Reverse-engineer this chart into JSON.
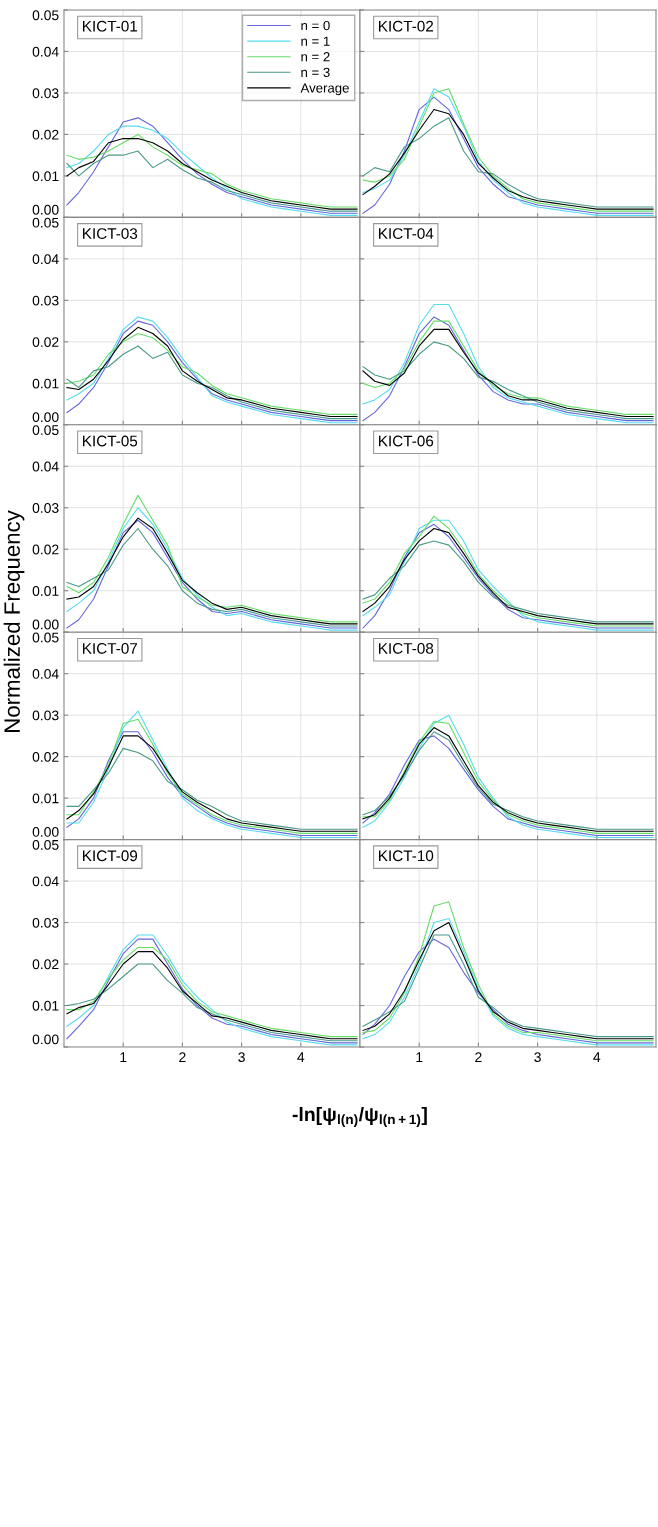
{
  "chart_data": [
    {
      "type": "line",
      "title": "KICT-01",
      "x": [
        0.05,
        0.25,
        0.5,
        0.75,
        1.0,
        1.25,
        1.5,
        1.75,
        2.0,
        2.25,
        2.5,
        2.75,
        3.0,
        3.25,
        3.5,
        3.75,
        4.0,
        4.25,
        4.5,
        4.75,
        4.95
      ],
      "xlim": [
        0,
        5
      ],
      "ylim": [
        0,
        0.05
      ],
      "xticks": [
        {
          "value": 1,
          "label": null
        },
        {
          "value": 2,
          "label": null
        },
        {
          "value": 3,
          "label": null
        },
        {
          "value": 4,
          "label": null
        }
      ],
      "yticks": [
        {
          "value": 0,
          "label": "0.00"
        },
        {
          "value": 0.01,
          "label": "0.01"
        },
        {
          "value": 0.02,
          "label": "0.02"
        },
        {
          "value": 0.03,
          "label": "0.03"
        },
        {
          "value": 0.04,
          "label": "0.04"
        },
        {
          "value": 0.05,
          "label": "0.05"
        }
      ],
      "grid": true,
      "tick_labels": "y",
      "legend": "top right",
      "series": [
        {
          "name": "n = 0",
          "color": "#6666dd",
          "values": [
            0.003,
            0.006,
            0.011,
            0.017,
            0.023,
            0.024,
            0.022,
            0.018,
            0.014,
            0.0105,
            0.008,
            0.006,
            0.005,
            0.004,
            0.003,
            0.0025,
            0.002,
            0.0015,
            0.001,
            0.001,
            0.001
          ]
        },
        {
          "name": "n = 1",
          "color": "#55ddee",
          "values": [
            0.012,
            0.013,
            0.016,
            0.02,
            0.022,
            0.022,
            0.021,
            0.019,
            0.0155,
            0.0125,
            0.0095,
            0.007,
            0.0045,
            0.0035,
            0.0025,
            0.002,
            0.0015,
            0.001,
            0.0005,
            0.0005,
            0.0005
          ]
        },
        {
          "name": "n = 2",
          "color": "#66dd66",
          "values": [
            0.015,
            0.014,
            0.0145,
            0.016,
            0.018,
            0.02,
            0.017,
            0.015,
            0.0125,
            0.0115,
            0.0105,
            0.008,
            0.0065,
            0.0055,
            0.0045,
            0.004,
            0.0035,
            0.003,
            0.0025,
            0.0025,
            0.0025
          ]
        },
        {
          "name": "n = 3",
          "color": "#4a9a8a",
          "values": [
            0.013,
            0.01,
            0.013,
            0.015,
            0.015,
            0.016,
            0.012,
            0.014,
            0.0115,
            0.0095,
            0.0085,
            0.0065,
            0.0055,
            0.0045,
            0.0035,
            0.003,
            0.0025,
            0.002,
            0.0015,
            0.0015,
            0.0015
          ]
        },
        {
          "name": "Average",
          "color": "#000000",
          "values": [
            0.01,
            0.012,
            0.0135,
            0.018,
            0.019,
            0.019,
            0.018,
            0.016,
            0.013,
            0.011,
            0.009,
            0.0075,
            0.006,
            0.005,
            0.004,
            0.0035,
            0.003,
            0.0025,
            0.002,
            0.002,
            0.002
          ]
        }
      ]
    },
    {
      "type": "line",
      "title": "KICT-02",
      "x": [
        0.05,
        0.25,
        0.5,
        0.75,
        1.0,
        1.25,
        1.5,
        1.75,
        2.0,
        2.25,
        2.5,
        2.75,
        3.0,
        3.25,
        3.5,
        3.75,
        4.0,
        4.25,
        4.5,
        4.75,
        4.95
      ],
      "xlim": [
        0,
        5
      ],
      "ylim": [
        0,
        0.05
      ],
      "xticks": [
        {
          "value": 1,
          "label": null
        },
        {
          "value": 2,
          "label": null
        },
        {
          "value": 3,
          "label": null
        },
        {
          "value": 4,
          "label": null
        }
      ],
      "yticks": [
        {
          "value": 0,
          "label": null
        },
        {
          "value": 0.01,
          "label": null
        },
        {
          "value": 0.02,
          "label": null
        },
        {
          "value": 0.03,
          "label": null
        },
        {
          "value": 0.04,
          "label": null
        },
        {
          "value": 0.05,
          "label": null
        }
      ],
      "grid": true,
      "tick_labels": false,
      "series": [
        {
          "color": "#6666dd",
          "values": [
            0.001,
            0.003,
            0.008,
            0.016,
            0.026,
            0.029,
            0.026,
            0.019,
            0.012,
            0.008,
            0.005,
            0.004,
            0.003,
            0.0025,
            0.002,
            0.0015,
            0.001,
            0.001,
            0.001,
            0.001,
            0.001
          ]
        },
        {
          "color": "#55ddee",
          "values": [
            0.006,
            0.007,
            0.009,
            0.015,
            0.023,
            0.031,
            0.029,
            0.022,
            0.0135,
            0.009,
            0.006,
            0.0035,
            0.0025,
            0.002,
            0.0015,
            0.001,
            0.0005,
            0.0005,
            0.0005,
            0.0005,
            0.0005
          ]
        },
        {
          "color": "#66dd66",
          "values": [
            0.009,
            0.0085,
            0.01,
            0.014,
            0.022,
            0.03,
            0.031,
            0.0225,
            0.0145,
            0.01,
            0.007,
            0.0045,
            0.0035,
            0.003,
            0.0025,
            0.002,
            0.0015,
            0.0015,
            0.0015,
            0.0015,
            0.0015
          ]
        },
        {
          "color": "#4a9a8a",
          "values": [
            0.01,
            0.012,
            0.011,
            0.017,
            0.019,
            0.022,
            0.024,
            0.016,
            0.011,
            0.0105,
            0.008,
            0.006,
            0.0045,
            0.004,
            0.0035,
            0.003,
            0.0025,
            0.0025,
            0.0025,
            0.0025,
            0.0025
          ]
        },
        {
          "color": "#000000",
          "values": [
            0.0055,
            0.0075,
            0.0105,
            0.0155,
            0.021,
            0.026,
            0.025,
            0.02,
            0.013,
            0.0095,
            0.0065,
            0.005,
            0.004,
            0.0035,
            0.003,
            0.0025,
            0.002,
            0.002,
            0.002,
            0.002,
            0.002
          ]
        }
      ]
    },
    {
      "type": "line",
      "title": "KICT-03",
      "x": [
        0.05,
        0.25,
        0.5,
        0.75,
        1.0,
        1.25,
        1.5,
        1.75,
        2.0,
        2.25,
        2.5,
        2.75,
        3.0,
        3.25,
        3.5,
        3.75,
        4.0,
        4.25,
        4.5,
        4.75,
        4.95
      ],
      "xlim": [
        0,
        5
      ],
      "ylim": [
        0,
        0.05
      ],
      "xticks": [
        {
          "value": 1,
          "label": null
        },
        {
          "value": 2,
          "label": null
        },
        {
          "value": 3,
          "label": null
        },
        {
          "value": 4,
          "label": null
        }
      ],
      "yticks": [
        {
          "value": 0,
          "label": "0.00"
        },
        {
          "value": 0.01,
          "label": "0.01"
        },
        {
          "value": 0.02,
          "label": "0.02"
        },
        {
          "value": 0.03,
          "label": "0.03"
        },
        {
          "value": 0.04,
          "label": "0.04"
        },
        {
          "value": 0.05,
          "label": "0.05"
        }
      ],
      "grid": true,
      "tick_labels": "y",
      "series": [
        {
          "color": "#6666dd",
          "values": [
            0.003,
            0.005,
            0.009,
            0.015,
            0.022,
            0.025,
            0.024,
            0.02,
            0.015,
            0.011,
            0.0075,
            0.006,
            0.005,
            0.004,
            0.003,
            0.0025,
            0.002,
            0.0015,
            0.001,
            0.001,
            0.001
          ]
        },
        {
          "color": "#55ddee",
          "values": [
            0.006,
            0.0075,
            0.01,
            0.016,
            0.023,
            0.026,
            0.025,
            0.021,
            0.016,
            0.0115,
            0.007,
            0.0055,
            0.0045,
            0.0035,
            0.0025,
            0.002,
            0.0015,
            0.001,
            0.0005,
            0.0005,
            0.0005
          ]
        },
        {
          "color": "#66dd66",
          "values": [
            0.01,
            0.0105,
            0.012,
            0.017,
            0.02,
            0.022,
            0.021,
            0.018,
            0.014,
            0.0125,
            0.0095,
            0.0075,
            0.0065,
            0.0055,
            0.0045,
            0.004,
            0.0035,
            0.003,
            0.0025,
            0.0025,
            0.0025
          ]
        },
        {
          "color": "#4a9a8a",
          "values": [
            0.011,
            0.009,
            0.013,
            0.014,
            0.017,
            0.019,
            0.016,
            0.0175,
            0.012,
            0.01,
            0.009,
            0.007,
            0.0055,
            0.0045,
            0.0035,
            0.003,
            0.0025,
            0.002,
            0.0015,
            0.0015,
            0.0015
          ]
        },
        {
          "color": "#000000",
          "values": [
            0.009,
            0.0085,
            0.011,
            0.0155,
            0.0205,
            0.0235,
            0.022,
            0.019,
            0.013,
            0.0105,
            0.0085,
            0.0065,
            0.006,
            0.005,
            0.004,
            0.0035,
            0.003,
            0.0025,
            0.002,
            0.002,
            0.002
          ]
        }
      ]
    },
    {
      "type": "line",
      "title": "KICT-04",
      "x": [
        0.05,
        0.25,
        0.5,
        0.75,
        1.0,
        1.25,
        1.5,
        1.75,
        2.0,
        2.25,
        2.5,
        2.75,
        3.0,
        3.25,
        3.5,
        3.75,
        4.0,
        4.25,
        4.5,
        4.75,
        4.95
      ],
      "xlim": [
        0,
        5
      ],
      "ylim": [
        0,
        0.05
      ],
      "xticks": [
        {
          "value": 1,
          "label": null
        },
        {
          "value": 2,
          "label": null
        },
        {
          "value": 3,
          "label": null
        },
        {
          "value": 4,
          "label": null
        }
      ],
      "yticks": [
        {
          "value": 0,
          "label": null
        },
        {
          "value": 0.01,
          "label": null
        },
        {
          "value": 0.02,
          "label": null
        },
        {
          "value": 0.03,
          "label": null
        },
        {
          "value": 0.04,
          "label": null
        },
        {
          "value": 0.05,
          "label": null
        }
      ],
      "grid": true,
      "tick_labels": false,
      "series": [
        {
          "color": "#6666dd",
          "values": [
            0.001,
            0.003,
            0.007,
            0.014,
            0.022,
            0.026,
            0.024,
            0.018,
            0.012,
            0.008,
            0.006,
            0.005,
            0.005,
            0.004,
            0.003,
            0.0025,
            0.002,
            0.0015,
            0.001,
            0.001,
            0.001
          ]
        },
        {
          "color": "#55ddee",
          "values": [
            0.005,
            0.006,
            0.0085,
            0.015,
            0.024,
            0.029,
            0.029,
            0.022,
            0.014,
            0.009,
            0.0065,
            0.0055,
            0.0045,
            0.0035,
            0.0025,
            0.002,
            0.0015,
            0.001,
            0.0005,
            0.0005,
            0.0005
          ]
        },
        {
          "color": "#66dd66",
          "values": [
            0.01,
            0.009,
            0.01,
            0.0135,
            0.02,
            0.025,
            0.025,
            0.019,
            0.013,
            0.0095,
            0.0075,
            0.0065,
            0.0065,
            0.0055,
            0.0045,
            0.004,
            0.0035,
            0.003,
            0.0025,
            0.0025,
            0.0025
          ]
        },
        {
          "color": "#4a9a8a",
          "values": [
            0.014,
            0.012,
            0.011,
            0.013,
            0.017,
            0.02,
            0.019,
            0.016,
            0.0115,
            0.0105,
            0.0085,
            0.007,
            0.0055,
            0.0045,
            0.0035,
            0.003,
            0.0025,
            0.002,
            0.0015,
            0.0015,
            0.0015
          ]
        },
        {
          "color": "#000000",
          "values": [
            0.013,
            0.0105,
            0.0095,
            0.0125,
            0.019,
            0.023,
            0.023,
            0.0175,
            0.0125,
            0.01,
            0.007,
            0.006,
            0.006,
            0.005,
            0.004,
            0.0035,
            0.003,
            0.0025,
            0.002,
            0.002,
            0.002
          ]
        }
      ]
    },
    {
      "type": "line",
      "title": "KICT-05",
      "ylabel": "Normalized Frequency",
      "x": [
        0.05,
        0.25,
        0.5,
        0.75,
        1.0,
        1.25,
        1.5,
        1.75,
        2.0,
        2.25,
        2.5,
        2.75,
        3.0,
        3.25,
        3.5,
        3.75,
        4.0,
        4.25,
        4.5,
        4.75,
        4.95
      ],
      "xlim": [
        0,
        5
      ],
      "ylim": [
        0,
        0.05
      ],
      "xticks": [
        {
          "value": 1,
          "label": null
        },
        {
          "value": 2,
          "label": null
        },
        {
          "value": 3,
          "label": null
        },
        {
          "value": 4,
          "label": null
        }
      ],
      "yticks": [
        {
          "value": 0,
          "label": "0.00"
        },
        {
          "value": 0.01,
          "label": "0.01"
        },
        {
          "value": 0.02,
          "label": "0.02"
        },
        {
          "value": 0.03,
          "label": "0.03"
        },
        {
          "value": 0.04,
          "label": "0.04"
        },
        {
          "value": 0.05,
          "label": "0.05"
        }
      ],
      "grid": true,
      "tick_labels": "y",
      "series": [
        {
          "color": "#6666dd",
          "values": [
            0.001,
            0.003,
            0.008,
            0.016,
            0.024,
            0.027,
            0.024,
            0.018,
            0.012,
            0.008,
            0.005,
            0.0045,
            0.005,
            0.004,
            0.003,
            0.0025,
            0.002,
            0.0015,
            0.001,
            0.001,
            0.001
          ]
        },
        {
          "color": "#55ddee",
          "values": [
            0.005,
            0.007,
            0.01,
            0.017,
            0.025,
            0.03,
            0.026,
            0.02,
            0.013,
            0.009,
            0.006,
            0.004,
            0.0045,
            0.0035,
            0.0025,
            0.002,
            0.0015,
            0.001,
            0.0005,
            0.0005,
            0.0005
          ]
        },
        {
          "color": "#66dd66",
          "values": [
            0.011,
            0.0095,
            0.012,
            0.018,
            0.026,
            0.033,
            0.027,
            0.021,
            0.011,
            0.0085,
            0.0065,
            0.006,
            0.0065,
            0.0055,
            0.0045,
            0.004,
            0.0035,
            0.003,
            0.0025,
            0.0025,
            0.0025
          ]
        },
        {
          "color": "#4a9a8a",
          "values": [
            0.012,
            0.011,
            0.013,
            0.015,
            0.021,
            0.025,
            0.02,
            0.016,
            0.01,
            0.007,
            0.0055,
            0.005,
            0.0055,
            0.0045,
            0.0035,
            0.003,
            0.0025,
            0.002,
            0.0015,
            0.0015,
            0.0015
          ]
        },
        {
          "color": "#000000",
          "values": [
            0.008,
            0.0085,
            0.011,
            0.0165,
            0.023,
            0.0275,
            0.025,
            0.019,
            0.0125,
            0.0095,
            0.007,
            0.0055,
            0.006,
            0.005,
            0.004,
            0.0035,
            0.003,
            0.0025,
            0.002,
            0.002,
            0.002
          ]
        }
      ]
    },
    {
      "type": "line",
      "title": "KICT-06",
      "x": [
        0.05,
        0.25,
        0.5,
        0.75,
        1.0,
        1.25,
        1.5,
        1.75,
        2.0,
        2.25,
        2.5,
        2.75,
        3.0,
        3.25,
        3.5,
        3.75,
        4.0,
        4.25,
        4.5,
        4.75,
        4.95
      ],
      "xlim": [
        0,
        5
      ],
      "ylim": [
        0,
        0.05
      ],
      "xticks": [
        {
          "value": 1,
          "label": null
        },
        {
          "value": 2,
          "label": null
        },
        {
          "value": 3,
          "label": null
        },
        {
          "value": 4,
          "label": null
        }
      ],
      "yticks": [
        {
          "value": 0,
          "label": null
        },
        {
          "value": 0.01,
          "label": null
        },
        {
          "value": 0.02,
          "label": null
        },
        {
          "value": 0.03,
          "label": null
        },
        {
          "value": 0.04,
          "label": null
        },
        {
          "value": 0.05,
          "label": null
        }
      ],
      "grid": true,
      "tick_labels": false,
      "series": [
        {
          "color": "#6666dd",
          "values": [
            0.001,
            0.004,
            0.01,
            0.018,
            0.024,
            0.026,
            0.023,
            0.018,
            0.013,
            0.009,
            0.0055,
            0.0035,
            0.003,
            0.0025,
            0.002,
            0.0015,
            0.001,
            0.001,
            0.001,
            0.001,
            0.001
          ]
        },
        {
          "color": "#55ddee",
          "values": [
            0.004,
            0.006,
            0.009,
            0.017,
            0.025,
            0.027,
            0.027,
            0.022,
            0.015,
            0.011,
            0.0075,
            0.004,
            0.0025,
            0.002,
            0.0015,
            0.001,
            0.0005,
            0.0005,
            0.0005,
            0.0005,
            0.0005
          ]
        },
        {
          "color": "#66dd66",
          "values": [
            0.007,
            0.008,
            0.012,
            0.019,
            0.023,
            0.028,
            0.025,
            0.02,
            0.014,
            0.01,
            0.007,
            0.0045,
            0.0035,
            0.003,
            0.0025,
            0.002,
            0.0015,
            0.0015,
            0.0015,
            0.0015,
            0.0015
          ]
        },
        {
          "color": "#4a9a8a",
          "values": [
            0.008,
            0.009,
            0.013,
            0.016,
            0.021,
            0.022,
            0.021,
            0.017,
            0.012,
            0.0085,
            0.0065,
            0.0055,
            0.0045,
            0.004,
            0.0035,
            0.003,
            0.0025,
            0.0025,
            0.0025,
            0.0025,
            0.0025
          ]
        },
        {
          "color": "#000000",
          "values": [
            0.005,
            0.007,
            0.011,
            0.0175,
            0.022,
            0.025,
            0.024,
            0.019,
            0.0135,
            0.0095,
            0.006,
            0.005,
            0.004,
            0.0035,
            0.003,
            0.0025,
            0.002,
            0.002,
            0.002,
            0.002,
            0.002
          ]
        }
      ]
    },
    {
      "type": "line",
      "title": "KICT-07",
      "x": [
        0.05,
        0.25,
        0.5,
        0.75,
        1.0,
        1.25,
        1.5,
        1.75,
        2.0,
        2.25,
        2.5,
        2.75,
        3.0,
        3.25,
        3.5,
        3.75,
        4.0,
        4.25,
        4.5,
        4.75,
        4.95
      ],
      "xlim": [
        0,
        5
      ],
      "ylim": [
        0,
        0.05
      ],
      "xticks": [
        {
          "value": 1,
          "label": null
        },
        {
          "value": 2,
          "label": null
        },
        {
          "value": 3,
          "label": null
        },
        {
          "value": 4,
          "label": null
        }
      ],
      "yticks": [
        {
          "value": 0,
          "label": "0.00"
        },
        {
          "value": 0.01,
          "label": "0.01"
        },
        {
          "value": 0.02,
          "label": "0.02"
        },
        {
          "value": 0.03,
          "label": "0.03"
        },
        {
          "value": 0.04,
          "label": "0.04"
        },
        {
          "value": 0.05,
          "label": "0.05"
        }
      ],
      "grid": true,
      "tick_labels": "y",
      "series": [
        {
          "color": "#6666dd",
          "values": [
            0.003,
            0.005,
            0.01,
            0.019,
            0.026,
            0.026,
            0.021,
            0.015,
            0.0105,
            0.008,
            0.0055,
            0.004,
            0.003,
            0.0025,
            0.002,
            0.0015,
            0.001,
            0.001,
            0.001,
            0.001,
            0.001
          ]
        },
        {
          "color": "#55ddee",
          "values": [
            0.004,
            0.004,
            0.009,
            0.017,
            0.027,
            0.031,
            0.024,
            0.017,
            0.01,
            0.007,
            0.005,
            0.0035,
            0.0025,
            0.002,
            0.0015,
            0.001,
            0.0005,
            0.0005,
            0.0005,
            0.0005,
            0.0005
          ]
        },
        {
          "color": "#66dd66",
          "values": [
            0.006,
            0.006,
            0.0115,
            0.018,
            0.028,
            0.029,
            0.023,
            0.016,
            0.011,
            0.0085,
            0.006,
            0.0045,
            0.0035,
            0.003,
            0.0025,
            0.002,
            0.0015,
            0.0015,
            0.0015,
            0.0015,
            0.0015
          ]
        },
        {
          "color": "#4a9a8a",
          "values": [
            0.008,
            0.008,
            0.012,
            0.016,
            0.022,
            0.021,
            0.019,
            0.014,
            0.012,
            0.0095,
            0.008,
            0.006,
            0.0045,
            0.004,
            0.0035,
            0.003,
            0.0025,
            0.0025,
            0.0025,
            0.0025,
            0.0025
          ]
        },
        {
          "color": "#000000",
          "values": [
            0.005,
            0.007,
            0.011,
            0.0175,
            0.025,
            0.025,
            0.022,
            0.0165,
            0.0115,
            0.009,
            0.007,
            0.005,
            0.004,
            0.0035,
            0.003,
            0.0025,
            0.002,
            0.002,
            0.002,
            0.002,
            0.002
          ]
        }
      ]
    },
    {
      "type": "line",
      "title": "KICT-08",
      "x": [
        0.05,
        0.25,
        0.5,
        0.75,
        1.0,
        1.25,
        1.5,
        1.75,
        2.0,
        2.25,
        2.5,
        2.75,
        3.0,
        3.25,
        3.5,
        3.75,
        4.0,
        4.25,
        4.5,
        4.75,
        4.95
      ],
      "xlim": [
        0,
        5
      ],
      "ylim": [
        0,
        0.05
      ],
      "xticks": [
        {
          "value": 1,
          "label": null
        },
        {
          "value": 2,
          "label": null
        },
        {
          "value": 3,
          "label": null
        },
        {
          "value": 4,
          "label": null
        }
      ],
      "yticks": [
        {
          "value": 0,
          "label": null
        },
        {
          "value": 0.01,
          "label": null
        },
        {
          "value": 0.02,
          "label": null
        },
        {
          "value": 0.03,
          "label": null
        },
        {
          "value": 0.04,
          "label": null
        },
        {
          "value": 0.05,
          "label": null
        }
      ],
      "grid": true,
      "tick_labels": false,
      "series": [
        {
          "color": "#6666dd",
          "values": [
            0.004,
            0.0065,
            0.011,
            0.018,
            0.024,
            0.025,
            0.022,
            0.017,
            0.012,
            0.008,
            0.005,
            0.004,
            0.003,
            0.0025,
            0.002,
            0.0015,
            0.001,
            0.001,
            0.001,
            0.001,
            0.001
          ]
        },
        {
          "color": "#55ddee",
          "values": [
            0.003,
            0.0045,
            0.009,
            0.015,
            0.022,
            0.028,
            0.03,
            0.023,
            0.015,
            0.01,
            0.0055,
            0.0035,
            0.0025,
            0.002,
            0.0015,
            0.001,
            0.0005,
            0.0005,
            0.0005,
            0.0005,
            0.0005
          ]
        },
        {
          "color": "#66dd66",
          "values": [
            0.0055,
            0.0055,
            0.0095,
            0.0165,
            0.0235,
            0.0285,
            0.028,
            0.021,
            0.014,
            0.0095,
            0.006,
            0.0045,
            0.0035,
            0.003,
            0.0025,
            0.002,
            0.0015,
            0.0015,
            0.0015,
            0.0015,
            0.0015
          ]
        },
        {
          "color": "#4a9a8a",
          "values": [
            0.006,
            0.007,
            0.0105,
            0.0155,
            0.0215,
            0.026,
            0.024,
            0.018,
            0.0125,
            0.0085,
            0.007,
            0.0055,
            0.0045,
            0.004,
            0.0035,
            0.003,
            0.0025,
            0.0025,
            0.0025,
            0.0025,
            0.0025
          ]
        },
        {
          "color": "#000000",
          "values": [
            0.005,
            0.006,
            0.01,
            0.016,
            0.023,
            0.027,
            0.025,
            0.019,
            0.013,
            0.009,
            0.0065,
            0.005,
            0.004,
            0.0035,
            0.003,
            0.0025,
            0.002,
            0.002,
            0.002,
            0.002,
            0.002
          ]
        }
      ]
    },
    {
      "type": "line",
      "title": "KICT-09",
      "xlabel": "-ln[ψ$_{l(n)}$/ψ$_{l(n+1)}$]",
      "x": [
        0.05,
        0.25,
        0.5,
        0.75,
        1.0,
        1.25,
        1.5,
        1.75,
        2.0,
        2.25,
        2.5,
        2.75,
        3.0,
        3.25,
        3.5,
        3.75,
        4.0,
        4.25,
        4.5,
        4.75,
        4.95
      ],
      "xlim": [
        0,
        5
      ],
      "ylim": [
        0,
        0.05
      ],
      "xticks": [
        1,
        2,
        3,
        4
      ],
      "yticks": [
        {
          "value": 0,
          "label": "0.00"
        },
        {
          "value": 0.01,
          "label": "0.01"
        },
        {
          "value": 0.02,
          "label": "0.02"
        },
        {
          "value": 0.03,
          "label": "0.03"
        },
        {
          "value": 0.04,
          "label": "0.04"
        },
        {
          "value": 0.05,
          "label": "0.05"
        }
      ],
      "grid": true,
      "series": [
        {
          "color": "#6666dd",
          "values": [
            0.002,
            0.005,
            0.009,
            0.016,
            0.0225,
            0.026,
            0.026,
            0.02,
            0.014,
            0.01,
            0.007,
            0.0055,
            0.005,
            0.004,
            0.003,
            0.0025,
            0.002,
            0.0015,
            0.001,
            0.001,
            0.001
          ]
        },
        {
          "color": "#55ddee",
          "values": [
            0.005,
            0.007,
            0.01,
            0.017,
            0.0235,
            0.027,
            0.027,
            0.022,
            0.016,
            0.012,
            0.009,
            0.006,
            0.0045,
            0.0035,
            0.0025,
            0.002,
            0.0015,
            0.001,
            0.0005,
            0.0005,
            0.0005
          ]
        },
        {
          "color": "#66dd66",
          "values": [
            0.009,
            0.009,
            0.011,
            0.0165,
            0.021,
            0.024,
            0.024,
            0.021,
            0.015,
            0.011,
            0.0085,
            0.0075,
            0.0065,
            0.0055,
            0.0045,
            0.004,
            0.0035,
            0.003,
            0.0025,
            0.0025,
            0.0025
          ]
        },
        {
          "color": "#4a9a8a",
          "values": [
            0.01,
            0.0105,
            0.0115,
            0.014,
            0.017,
            0.02,
            0.02,
            0.016,
            0.013,
            0.0095,
            0.008,
            0.0065,
            0.0055,
            0.0045,
            0.0035,
            0.003,
            0.0025,
            0.002,
            0.0015,
            0.0015,
            0.0015
          ]
        },
        {
          "color": "#000000",
          "values": [
            0.008,
            0.0095,
            0.0105,
            0.015,
            0.02,
            0.023,
            0.023,
            0.019,
            0.0135,
            0.0105,
            0.0075,
            0.007,
            0.006,
            0.005,
            0.004,
            0.0035,
            0.003,
            0.0025,
            0.002,
            0.002,
            0.002
          ]
        }
      ]
    },
    {
      "type": "line",
      "title": "KICT-10",
      "x": [
        0.05,
        0.25,
        0.5,
        0.75,
        1.0,
        1.25,
        1.5,
        1.75,
        2.0,
        2.25,
        2.5,
        2.75,
        3.0,
        3.25,
        3.5,
        3.75,
        4.0,
        4.25,
        4.5,
        4.75,
        4.95
      ],
      "xlim": [
        0,
        5
      ],
      "ylim": [
        0,
        0.05
      ],
      "xticks": [
        1,
        2,
        3,
        4
      ],
      "yticks": [
        {
          "value": 0,
          "label": null
        },
        {
          "value": 0.01,
          "label": null
        },
        {
          "value": 0.02,
          "label": null
        },
        {
          "value": 0.03,
          "label": null
        },
        {
          "value": 0.04,
          "label": null
        },
        {
          "value": 0.05,
          "label": null
        }
      ],
      "grid": true,
      "tick_labels": "x",
      "series": [
        {
          "color": "#6666dd",
          "values": [
            0.003,
            0.0055,
            0.01,
            0.017,
            0.023,
            0.026,
            0.024,
            0.018,
            0.013,
            0.009,
            0.0055,
            0.004,
            0.003,
            0.0025,
            0.002,
            0.0015,
            0.001,
            0.001,
            0.001,
            0.001,
            0.001
          ]
        },
        {
          "color": "#55ddee",
          "values": [
            0.002,
            0.003,
            0.006,
            0.012,
            0.02,
            0.03,
            0.031,
            0.023,
            0.014,
            0.0075,
            0.0045,
            0.003,
            0.0025,
            0.002,
            0.0015,
            0.001,
            0.0005,
            0.0005,
            0.0005,
            0.0005,
            0.0005
          ]
        },
        {
          "color": "#66dd66",
          "values": [
            0.0035,
            0.004,
            0.007,
            0.013,
            0.022,
            0.034,
            0.035,
            0.024,
            0.015,
            0.008,
            0.005,
            0.0035,
            0.0035,
            0.003,
            0.0025,
            0.002,
            0.0015,
            0.0015,
            0.0015,
            0.0015,
            0.0015
          ]
        },
        {
          "color": "#4a9a8a",
          "values": [
            0.005,
            0.0065,
            0.0085,
            0.011,
            0.019,
            0.027,
            0.027,
            0.02,
            0.012,
            0.0095,
            0.0065,
            0.005,
            0.0045,
            0.004,
            0.0035,
            0.003,
            0.0025,
            0.0025,
            0.0025,
            0.0025,
            0.0025
          ]
        },
        {
          "color": "#000000",
          "values": [
            0.004,
            0.005,
            0.008,
            0.0135,
            0.021,
            0.028,
            0.03,
            0.022,
            0.0135,
            0.0085,
            0.006,
            0.0045,
            0.004,
            0.0035,
            0.003,
            0.0025,
            0.002,
            0.002,
            0.002,
            0.002,
            0.002
          ]
        }
      ]
    }
  ]
}
